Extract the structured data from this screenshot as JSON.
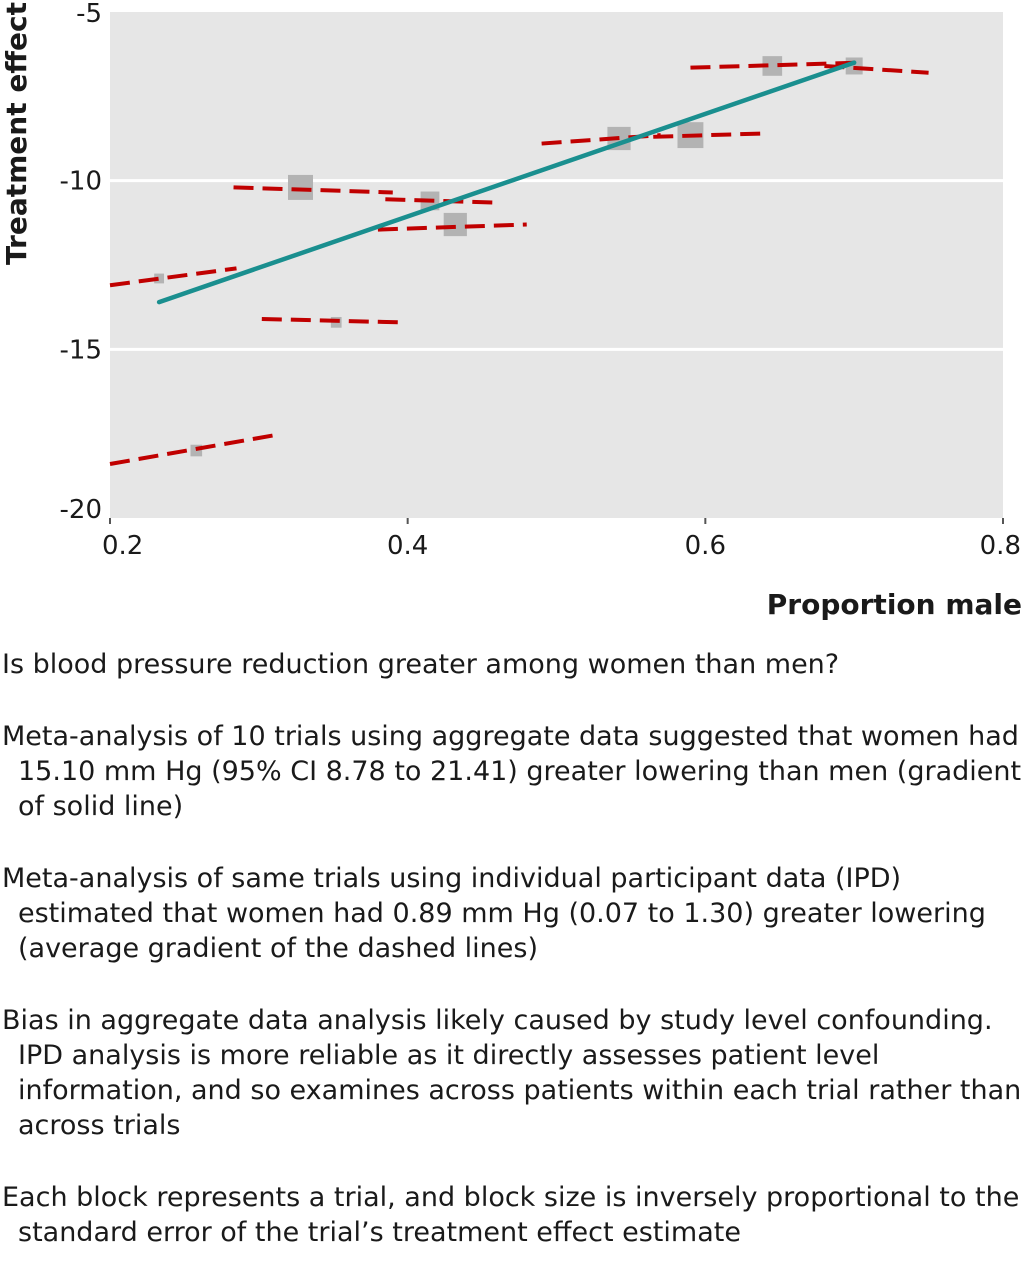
{
  "chart_data": {
    "type": "scatter",
    "xlabel": "Proportion male",
    "ylabel": "Treatment effect",
    "xlim": [
      0.2,
      0.8
    ],
    "ylim": [
      -20,
      -5
    ],
    "x_ticks": [
      "0.2",
      "0.4",
      "0.6",
      "0.8"
    ],
    "y_ticks": [
      "-5",
      "-10",
      "-15",
      "-20"
    ],
    "grid": true,
    "trials": [
      {
        "x": 0.233,
        "y": -12.9,
        "block": 0.011,
        "ipd_line": [
          [
            0.2,
            -13.1
          ],
          [
            0.285,
            -12.6
          ]
        ]
      },
      {
        "x": 0.258,
        "y": -18.0,
        "block": 0.013,
        "ipd_line": [
          [
            0.2,
            -18.4
          ],
          [
            0.31,
            -17.55
          ]
        ]
      },
      {
        "x": 0.328,
        "y": -10.2,
        "block": 0.028,
        "ipd_line": [
          [
            0.283,
            -10.2
          ],
          [
            0.39,
            -10.35
          ]
        ]
      },
      {
        "x": 0.352,
        "y": -14.2,
        "block": 0.012,
        "ipd_line": [
          [
            0.302,
            -14.1
          ],
          [
            0.395,
            -14.2
          ]
        ]
      },
      {
        "x": 0.415,
        "y": -10.6,
        "block": 0.021,
        "ipd_line": [
          [
            0.385,
            -10.55
          ],
          [
            0.46,
            -10.65
          ]
        ]
      },
      {
        "x": 0.432,
        "y": -11.3,
        "block": 0.026,
        "ipd_line": [
          [
            0.38,
            -11.45
          ],
          [
            0.48,
            -11.3
          ]
        ]
      },
      {
        "x": 0.542,
        "y": -8.75,
        "block": 0.026,
        "ipd_line": [
          [
            0.49,
            -8.9
          ],
          [
            0.57,
            -8.65
          ]
        ]
      },
      {
        "x": 0.59,
        "y": -8.65,
        "block": 0.029,
        "ipd_line": [
          [
            0.565,
            -8.7
          ],
          [
            0.64,
            -8.6
          ]
        ]
      },
      {
        "x": 0.645,
        "y": -6.6,
        "block": 0.022,
        "ipd_line": [
          [
            0.59,
            -6.65
          ],
          [
            0.705,
            -6.5
          ]
        ]
      },
      {
        "x": 0.7,
        "y": -6.6,
        "block": 0.019,
        "ipd_line": [
          [
            0.68,
            -6.6
          ],
          [
            0.75,
            -6.8
          ]
        ]
      }
    ],
    "aggregate_line": [
      [
        0.233,
        -13.6
      ],
      [
        0.7,
        -6.5
      ]
    ],
    "colors": {
      "plot_bg": "#e6e6e6",
      "grid": "#ffffff",
      "block": "#b3b3b3",
      "dashed_line": "#c00000",
      "solid_line": "#1a8f8f"
    }
  },
  "notes": {
    "question": "Is blood pressure reduction greater among women than men?",
    "paragraphs": [
      "Meta-analysis of 10 trials using aggregate data suggested that women had 15.10 mm Hg (95% CI 8.78 to 21.41) greater lowering than men (gradient of solid line)",
      "Meta-analysis of same trials using individual participant data (IPD) estimated that women had 0.89 mm Hg (0.07 to 1.30) greater lowering (average gradient of the dashed lines)",
      "Bias in aggregate data analysis likely caused by study level confounding. IPD analysis is more reliable as it directly assesses patient level information, and so examines across patients within each trial rather than across trials",
      "Each block represents a trial, and block size is inversely proportional to the standard error of the trial’s treatment effect estimate"
    ]
  }
}
